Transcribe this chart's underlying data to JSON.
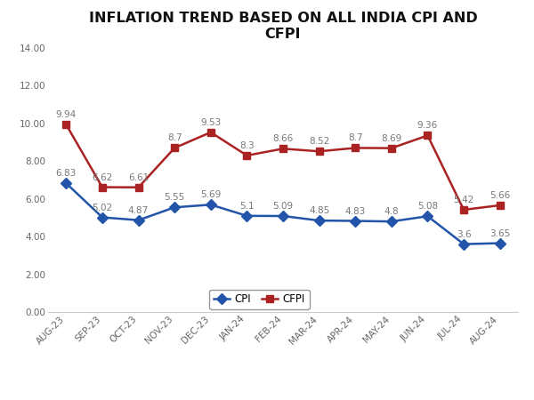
{
  "title": "INFLATION TREND BASED ON ALL INDIA CPI AND\nCFPI",
  "categories": [
    "AUG-23",
    "SEP-23",
    "OCT-23",
    "NOV-23",
    "DEC-23",
    "JAN-24",
    "FEB-24",
    "MAR-24",
    "APR-24",
    "MAY-24",
    "JUN-24",
    "JUL-24",
    "AUG-24"
  ],
  "cpi_values": [
    6.83,
    5.02,
    4.87,
    5.55,
    5.69,
    5.1,
    5.09,
    4.85,
    4.83,
    4.8,
    5.08,
    3.6,
    3.65
  ],
  "cfpi_values": [
    9.94,
    6.62,
    6.61,
    8.7,
    9.53,
    8.3,
    8.66,
    8.52,
    8.7,
    8.69,
    9.36,
    5.42,
    5.66
  ],
  "cpi_color": "#2255aa",
  "cfpi_color": "#aa2222",
  "ylim": [
    0,
    14
  ],
  "yticks": [
    0.0,
    2.0,
    4.0,
    6.0,
    8.0,
    10.0,
    12.0,
    14.0
  ],
  "background_color": "#ffffff",
  "title_fontsize": 11.5,
  "label_fontsize": 7.5,
  "tick_fontsize": 7.5,
  "legend_fontsize": 8.5,
  "linewidth": 1.8,
  "markersize": 6
}
